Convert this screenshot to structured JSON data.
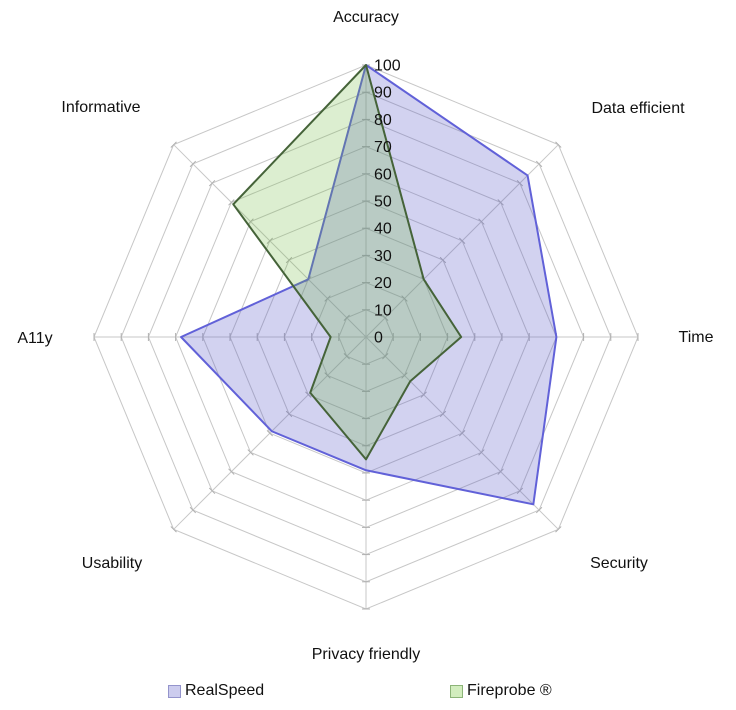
{
  "chart_data": {
    "type": "radar",
    "title": "",
    "categories": [
      "Accuracy",
      "Data efficient",
      "Time",
      "Security",
      "Privacy friendly",
      "Usability",
      "A11y",
      "Informative"
    ],
    "series": [
      {
        "name": "RealSpeed",
        "values": [
          100,
          84,
          70,
          87,
          49,
          49,
          68,
          30
        ],
        "stroke": "#6161d8",
        "fill": "rgba(90,90,200,0.27)"
      },
      {
        "name": "Fireprobe ®",
        "values": [
          100,
          30,
          35,
          23,
          45,
          29,
          13,
          69
        ],
        "stroke": "#456339",
        "fill": "rgba(110,185,60,0.24)"
      }
    ],
    "radial_axis": {
      "min": 0,
      "max": 100,
      "tick_step": 10,
      "ticks": [
        0,
        10,
        20,
        30,
        40,
        50,
        60,
        70,
        80,
        90,
        100
      ],
      "tick_label_color": "#111111"
    },
    "grid": {
      "shape": "polygon",
      "rings": 10,
      "line_color": "#c7c7c7",
      "tick_mark_color": "#b0b0b0",
      "grid_on": true
    },
    "legend_position": "bottom"
  },
  "legend": {
    "items": [
      {
        "label": "RealSpeed",
        "fill": "#ccccee",
        "border": "#9494cc"
      },
      {
        "label": "Fireprobe ®",
        "fill": "#d2edbe",
        "border": "#8cb478"
      }
    ]
  }
}
